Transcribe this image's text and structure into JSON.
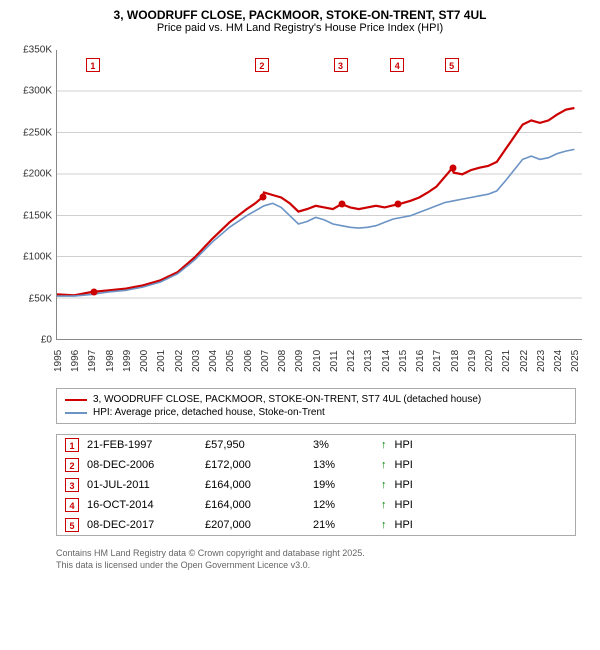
{
  "title": "3, WOODRUFF CLOSE, PACKMOOR, STOKE-ON-TRENT, ST7 4UL",
  "subtitle": "Price paid vs. HM Land Registry's House Price Index (HPI)",
  "chart": {
    "type": "line",
    "background_color": "#ffffff",
    "grid_color": "#d0d0d0",
    "x_range": [
      1995,
      2025.5
    ],
    "y_range": [
      0,
      350000
    ],
    "y_ticks": [
      {
        "v": 0,
        "label": "£0"
      },
      {
        "v": 50000,
        "label": "£50K"
      },
      {
        "v": 100000,
        "label": "£100K"
      },
      {
        "v": 150000,
        "label": "£150K"
      },
      {
        "v": 200000,
        "label": "£200K"
      },
      {
        "v": 250000,
        "label": "£250K"
      },
      {
        "v": 300000,
        "label": "£300K"
      },
      {
        "v": 350000,
        "label": "£350K"
      }
    ],
    "x_ticks": [
      1995,
      1996,
      1997,
      1998,
      1999,
      2000,
      2001,
      2002,
      2003,
      2004,
      2005,
      2006,
      2007,
      2008,
      2009,
      2010,
      2011,
      2012,
      2013,
      2014,
      2015,
      2016,
      2017,
      2018,
      2019,
      2020,
      2021,
      2022,
      2023,
      2024,
      2025
    ],
    "series": [
      {
        "name": "price_paid",
        "color": "#cc0000",
        "line_width": 2.2,
        "points": [
          [
            1995,
            55000
          ],
          [
            1996,
            54000
          ],
          [
            1997,
            57950
          ],
          [
            1998,
            60000
          ],
          [
            1999,
            62000
          ],
          [
            2000,
            66000
          ],
          [
            2001,
            72000
          ],
          [
            2002,
            82000
          ],
          [
            2003,
            100000
          ],
          [
            2004,
            122000
          ],
          [
            2005,
            142000
          ],
          [
            2006,
            158000
          ],
          [
            2006.5,
            165000
          ],
          [
            2006.9,
            172000
          ],
          [
            2007,
            178000
          ],
          [
            2007.5,
            175000
          ],
          [
            2008,
            172000
          ],
          [
            2008.5,
            165000
          ],
          [
            2009,
            155000
          ],
          [
            2009.5,
            158000
          ],
          [
            2010,
            162000
          ],
          [
            2010.5,
            160000
          ],
          [
            2011,
            158000
          ],
          [
            2011.5,
            164000
          ],
          [
            2012,
            160000
          ],
          [
            2012.5,
            158000
          ],
          [
            2013,
            160000
          ],
          [
            2013.5,
            162000
          ],
          [
            2014,
            160000
          ],
          [
            2014.8,
            164000
          ],
          [
            2015,
            165000
          ],
          [
            2015.5,
            168000
          ],
          [
            2016,
            172000
          ],
          [
            2016.5,
            178000
          ],
          [
            2017,
            185000
          ],
          [
            2017.9,
            207000
          ],
          [
            2018,
            202000
          ],
          [
            2018.5,
            200000
          ],
          [
            2019,
            205000
          ],
          [
            2019.5,
            208000
          ],
          [
            2020,
            210000
          ],
          [
            2020.5,
            215000
          ],
          [
            2021,
            230000
          ],
          [
            2021.5,
            245000
          ],
          [
            2022,
            260000
          ],
          [
            2022.5,
            265000
          ],
          [
            2023,
            262000
          ],
          [
            2023.5,
            265000
          ],
          [
            2024,
            272000
          ],
          [
            2024.5,
            278000
          ],
          [
            2025,
            280000
          ]
        ]
      },
      {
        "name": "hpi",
        "color": "#6b93c4",
        "line_width": 1.6,
        "points": [
          [
            1995,
            53000
          ],
          [
            1996,
            53000
          ],
          [
            1997,
            55000
          ],
          [
            1998,
            58000
          ],
          [
            1999,
            60000
          ],
          [
            2000,
            64000
          ],
          [
            2001,
            70000
          ],
          [
            2002,
            80000
          ],
          [
            2003,
            97000
          ],
          [
            2004,
            118000
          ],
          [
            2005,
            136000
          ],
          [
            2006,
            150000
          ],
          [
            2007,
            162000
          ],
          [
            2007.5,
            165000
          ],
          [
            2008,
            160000
          ],
          [
            2008.5,
            150000
          ],
          [
            2009,
            140000
          ],
          [
            2009.5,
            143000
          ],
          [
            2010,
            148000
          ],
          [
            2010.5,
            145000
          ],
          [
            2011,
            140000
          ],
          [
            2011.5,
            138000
          ],
          [
            2012,
            136000
          ],
          [
            2012.5,
            135000
          ],
          [
            2013,
            136000
          ],
          [
            2013.5,
            138000
          ],
          [
            2014,
            142000
          ],
          [
            2014.5,
            146000
          ],
          [
            2015,
            148000
          ],
          [
            2015.5,
            150000
          ],
          [
            2016,
            154000
          ],
          [
            2016.5,
            158000
          ],
          [
            2017,
            162000
          ],
          [
            2017.5,
            166000
          ],
          [
            2018,
            168000
          ],
          [
            2018.5,
            170000
          ],
          [
            2019,
            172000
          ],
          [
            2019.5,
            174000
          ],
          [
            2020,
            176000
          ],
          [
            2020.5,
            180000
          ],
          [
            2021,
            192000
          ],
          [
            2021.5,
            205000
          ],
          [
            2022,
            218000
          ],
          [
            2022.5,
            222000
          ],
          [
            2023,
            218000
          ],
          [
            2023.5,
            220000
          ],
          [
            2024,
            225000
          ],
          [
            2024.5,
            228000
          ],
          [
            2025,
            230000
          ]
        ]
      }
    ],
    "sale_markers": [
      {
        "n": 1,
        "year": 1997.14,
        "price": 57950
      },
      {
        "n": 2,
        "year": 2006.94,
        "price": 172000
      },
      {
        "n": 3,
        "year": 2011.5,
        "price": 164000
      },
      {
        "n": 4,
        "year": 2014.79,
        "price": 164000
      },
      {
        "n": 5,
        "year": 2017.94,
        "price": 207000
      }
    ]
  },
  "legend": {
    "items": [
      {
        "color": "#cc0000",
        "label": "3, WOODRUFF CLOSE, PACKMOOR, STOKE-ON-TRENT, ST7 4UL (detached house)"
      },
      {
        "color": "#6b93c4",
        "label": "HPI: Average price, detached house, Stoke-on-Trent"
      }
    ]
  },
  "sales_table": [
    {
      "n": 1,
      "date": "21-FEB-1997",
      "price": "£57,950",
      "pct": "3%",
      "dir": "↑",
      "suffix": "HPI"
    },
    {
      "n": 2,
      "date": "08-DEC-2006",
      "price": "£172,000",
      "pct": "13%",
      "dir": "↑",
      "suffix": "HPI"
    },
    {
      "n": 3,
      "date": "01-JUL-2011",
      "price": "£164,000",
      "pct": "19%",
      "dir": "↑",
      "suffix": "HPI"
    },
    {
      "n": 4,
      "date": "16-OCT-2014",
      "price": "£164,000",
      "pct": "12%",
      "dir": "↑",
      "suffix": "HPI"
    },
    {
      "n": 5,
      "date": "08-DEC-2017",
      "price": "£207,000",
      "pct": "21%",
      "dir": "↑",
      "suffix": "HPI"
    }
  ],
  "footer": {
    "line1": "Contains HM Land Registry data © Crown copyright and database right 2025.",
    "line2": "This data is licensed under the Open Government Licence v3.0."
  }
}
